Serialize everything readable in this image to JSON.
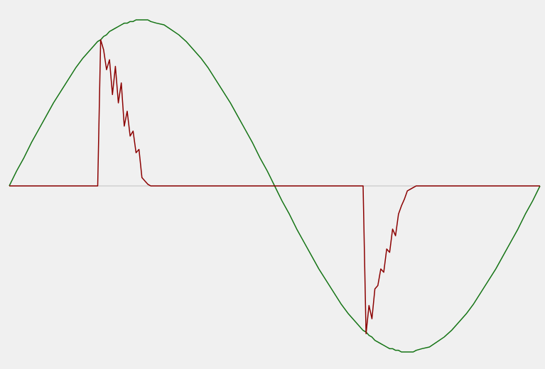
{
  "chart_data": {
    "type": "line",
    "x": [
      0,
      5,
      10,
      15,
      20,
      25,
      30,
      35,
      40,
      45,
      50,
      55,
      60,
      62,
      64,
      66,
      68,
      70,
      72,
      74,
      76,
      78,
      80,
      82,
      84,
      86,
      88,
      90,
      92,
      94,
      96,
      100,
      105,
      110,
      115,
      120,
      125,
      130,
      135,
      140,
      145,
      150,
      155,
      160,
      165,
      170,
      175,
      180,
      185,
      190,
      195,
      200,
      205,
      210,
      215,
      220,
      225,
      230,
      235,
      240,
      242,
      244,
      246,
      248,
      250,
      252,
      254,
      256,
      258,
      260,
      262,
      264,
      266,
      268,
      270,
      272,
      274,
      276,
      280,
      285,
      290,
      295,
      300,
      305,
      310,
      315,
      320,
      325,
      330,
      335,
      340,
      345,
      350,
      355,
      360
    ],
    "series": [
      {
        "color": "#137313",
        "values": [
          0,
          0.09,
          0.17,
          0.26,
          0.34,
          0.42,
          0.5,
          0.57,
          0.64,
          0.71,
          0.77,
          0.82,
          0.87,
          0.88,
          0.9,
          0.91,
          0.93,
          0.94,
          0.95,
          0.96,
          0.97,
          0.98,
          0.98,
          0.99,
          0.99,
          1,
          1,
          1,
          1,
          1,
          0.99,
          0.98,
          0.97,
          0.94,
          0.91,
          0.87,
          0.82,
          0.77,
          0.71,
          0.64,
          0.57,
          0.5,
          0.42,
          0.34,
          0.26,
          0.17,
          0.09,
          0,
          -0.09,
          -0.17,
          -0.26,
          -0.34,
          -0.42,
          -0.5,
          -0.57,
          -0.64,
          -0.71,
          -0.77,
          -0.82,
          -0.87,
          -0.88,
          -0.9,
          -0.91,
          -0.93,
          -0.94,
          -0.95,
          -0.96,
          -0.97,
          -0.98,
          -0.98,
          -0.99,
          -0.99,
          -1,
          -1,
          -1,
          -1,
          -1,
          -0.99,
          -0.98,
          -0.97,
          -0.94,
          -0.91,
          -0.87,
          -0.82,
          -0.77,
          -0.71,
          -0.64,
          -0.57,
          -0.5,
          -0.42,
          -0.34,
          -0.26,
          -0.17,
          -0.09,
          0
        ]
      },
      {
        "color": "#8b0000",
        "values": [
          0,
          0,
          0,
          0,
          0,
          0,
          0,
          0,
          0,
          0,
          0,
          0,
          0,
          0.88,
          0.82,
          0.7,
          0.76,
          0.55,
          0.72,
          0.5,
          0.62,
          0.36,
          0.45,
          0.3,
          0.33,
          0.2,
          0.22,
          0.05,
          0.03,
          0.01,
          0,
          0,
          0,
          0,
          0,
          0,
          0,
          0,
          0,
          0,
          0,
          0,
          0,
          0,
          0,
          0,
          0,
          0,
          0,
          0,
          0,
          0,
          0,
          0,
          0,
          0,
          0,
          0,
          0,
          0,
          -0.89,
          -0.72,
          -0.8,
          -0.62,
          -0.6,
          -0.5,
          -0.52,
          -0.38,
          -0.4,
          -0.26,
          -0.3,
          -0.17,
          -0.12,
          -0.08,
          -0.03,
          -0.02,
          -0.01,
          0,
          0,
          0,
          0,
          0,
          0,
          0,
          0,
          0,
          0,
          0,
          0,
          0,
          0,
          0,
          0,
          0,
          0
        ]
      }
    ],
    "xlim": [
      0,
      360
    ],
    "ylim": [
      -1.1,
      1.1
    ]
  }
}
